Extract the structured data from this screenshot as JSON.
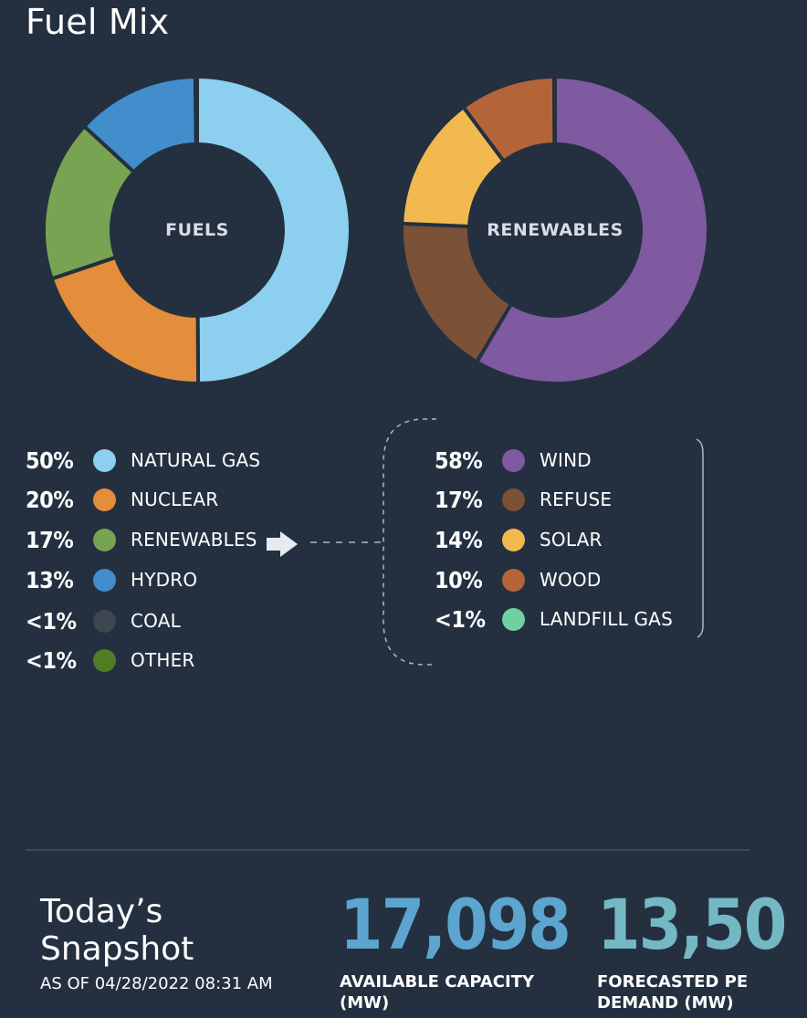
{
  "page": {
    "title": "Fuel Mix"
  },
  "chart_data": [
    {
      "type": "donut",
      "center_label": "FUELS",
      "categories": [
        "NATURAL GAS",
        "NUCLEAR",
        "RENEWABLES",
        "HYDRO",
        "COAL",
        "OTHER"
      ],
      "labels": [
        "50%",
        "20%",
        "17%",
        "13%",
        "<1%",
        "<1%"
      ],
      "values": [
        50,
        20,
        17,
        13,
        0.1,
        0.1
      ],
      "colors": [
        "#8ccfee",
        "#e48d3b",
        "#78a352",
        "#428dcb",
        "#3d474f",
        "#4f7d24"
      ]
    },
    {
      "type": "donut",
      "center_label": "RENEWABLES",
      "categories": [
        "WIND",
        "REFUSE",
        "SOLAR",
        "WOOD",
        "LANDFILL GAS"
      ],
      "labels": [
        "58%",
        "17%",
        "14%",
        "10%",
        "<1%"
      ],
      "values": [
        58,
        17,
        14,
        10,
        0.1
      ],
      "colors": [
        "#7f5aa0",
        "#7b5137",
        "#f2b94f",
        "#b36439",
        "#6fd19f"
      ]
    }
  ],
  "snapshot": {
    "title": "Today’s Snapshot",
    "as_of": "AS OF 04/28/2022 08:31 AM",
    "stats": [
      {
        "value": "17,098",
        "label": "AVAILABLE CAPACITY (MW)",
        "color": "#5ba5cf"
      },
      {
        "value": "13,50",
        "label": "FORECASTED PE DEMAND (MW)",
        "color": "#74b8c4"
      }
    ]
  }
}
